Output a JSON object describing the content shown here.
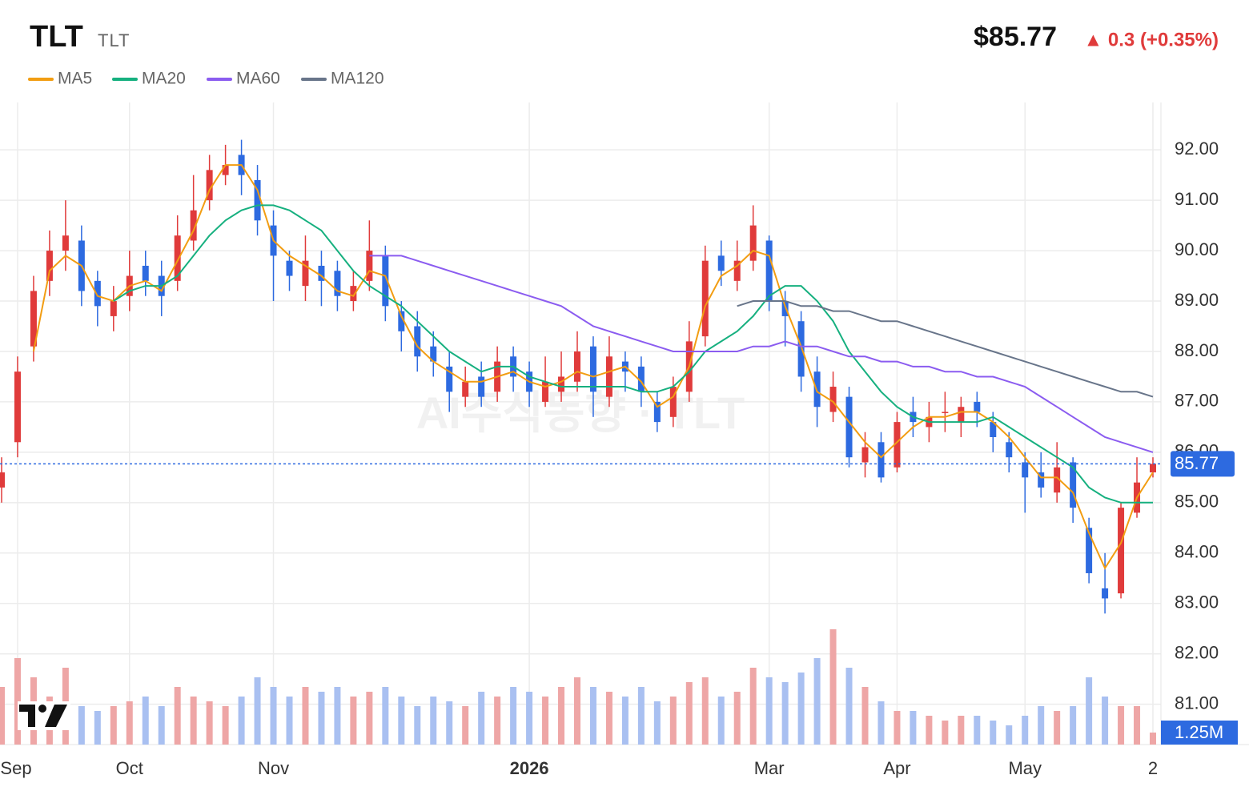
{
  "chart_data": {
    "type": "candlestick",
    "title": "TLT",
    "subtitle": "TLT",
    "price": "$85.77",
    "change": "▲ 0.3 (+0.35%)",
    "watermark": "AI주식동향 · TLT",
    "categories": [
      null,
      "Sep",
      null,
      null,
      null,
      null,
      null,
      null,
      "Oct",
      null,
      null,
      null,
      null,
      null,
      null,
      null,
      null,
      "Nov",
      null,
      null,
      null,
      null,
      null,
      null,
      null,
      null,
      null,
      null,
      null,
      null,
      null,
      null,
      null,
      "2026",
      null,
      null,
      null,
      null,
      null,
      null,
      null,
      null,
      null,
      null,
      null,
      null,
      null,
      null,
      "Mar",
      null,
      null,
      null,
      null,
      null,
      null,
      null,
      "Apr",
      null,
      null,
      null,
      null,
      null,
      null,
      null,
      "May",
      null,
      null,
      null,
      null,
      null,
      null,
      null,
      "2"
    ],
    "open": [
      85.3,
      86.2,
      88.1,
      89.4,
      90.0,
      90.2,
      89.4,
      88.7,
      89.1,
      89.7,
      89.5,
      89.4,
      90.2,
      91.0,
      91.5,
      91.9,
      91.4,
      90.5,
      89.8,
      89.3,
      89.7,
      89.6,
      89.0,
      89.4,
      89.9,
      88.8,
      88.5,
      88.1,
      87.7,
      87.1,
      87.5,
      87.2,
      87.9,
      87.6,
      87.0,
      87.2,
      87.4,
      88.1,
      87.1,
      87.8,
      87.7,
      87.0,
      86.7,
      87.2,
      88.3,
      89.9,
      89.4,
      89.8,
      90.2,
      89.0,
      88.6,
      87.6,
      86.8,
      87.1,
      85.8,
      86.2,
      85.7,
      86.8,
      86.5,
      86.8,
      86.6,
      87.0,
      86.6,
      86.2,
      85.8,
      85.6,
      85.2,
      85.8,
      84.5,
      83.3,
      83.2,
      84.8,
      85.6
    ],
    "high": [
      85.9,
      87.9,
      89.5,
      90.4,
      91.0,
      90.5,
      89.6,
      89.3,
      90.0,
      90.0,
      89.8,
      90.7,
      91.5,
      91.9,
      92.1,
      92.2,
      91.7,
      90.8,
      90.0,
      90.3,
      90.0,
      89.8,
      89.6,
      90.6,
      90.1,
      89.0,
      88.8,
      88.4,
      88.0,
      87.7,
      87.8,
      88.1,
      88.1,
      87.8,
      87.9,
      88.0,
      88.4,
      88.3,
      88.3,
      88.0,
      87.9,
      87.2,
      87.5,
      88.6,
      90.1,
      90.2,
      90.2,
      90.9,
      90.3,
      89.2,
      88.8,
      87.9,
      87.6,
      87.3,
      86.4,
      86.4,
      86.8,
      87.1,
      87.0,
      87.2,
      87.1,
      87.2,
      86.8,
      86.4,
      86.0,
      86.0,
      86.2,
      85.9,
      84.7,
      84.0,
      85.0,
      85.9,
      85.9
    ],
    "low": [
      85.0,
      85.9,
      87.8,
      89.1,
      89.6,
      88.9,
      88.5,
      88.4,
      88.8,
      89.1,
      88.7,
      89.2,
      90.0,
      90.8,
      91.3,
      91.1,
      90.3,
      89.0,
      89.2,
      89.0,
      88.9,
      88.8,
      88.8,
      89.2,
      88.6,
      88.0,
      87.6,
      87.5,
      86.8,
      86.9,
      86.9,
      87.0,
      87.2,
      86.9,
      86.9,
      87.0,
      87.2,
      86.7,
      86.9,
      87.2,
      86.9,
      86.4,
      86.5,
      87.0,
      88.1,
      89.3,
      89.2,
      89.6,
      88.8,
      88.1,
      87.2,
      86.5,
      86.6,
      85.7,
      85.5,
      85.4,
      85.6,
      86.3,
      86.2,
      86.4,
      86.3,
      86.5,
      86.0,
      85.6,
      84.8,
      85.1,
      85.0,
      84.6,
      83.4,
      82.8,
      83.1,
      84.7,
      85.5
    ],
    "close": [
      85.6,
      87.6,
      89.2,
      90.0,
      90.3,
      89.2,
      88.9,
      89.0,
      89.5,
      89.4,
      89.1,
      90.3,
      90.8,
      91.6,
      91.7,
      91.5,
      90.6,
      89.9,
      89.5,
      89.8,
      89.4,
      89.1,
      89.3,
      90.0,
      88.9,
      88.4,
      87.9,
      87.8,
      87.2,
      87.4,
      87.1,
      87.8,
      87.5,
      87.2,
      87.4,
      87.5,
      88.0,
      87.2,
      87.9,
      87.6,
      87.2,
      86.6,
      87.3,
      88.2,
      89.8,
      89.6,
      89.8,
      90.5,
      89.0,
      88.7,
      87.5,
      86.9,
      87.3,
      85.9,
      86.1,
      85.5,
      86.6,
      86.6,
      86.7,
      86.8,
      86.9,
      86.8,
      86.3,
      85.9,
      85.5,
      85.3,
      85.7,
      84.9,
      83.6,
      83.1,
      84.9,
      85.4,
      85.77
    ],
    "up_color": "#e03b3b",
    "down_color": "#2d6ae0",
    "up_volume_color": "#eea6a6",
    "down_volume_color": "#a9c0f1",
    "series": [
      {
        "name": "MA5",
        "color": "#f29d12",
        "values": [
          null,
          null,
          88.0,
          89.6,
          89.9,
          89.7,
          89.1,
          89.0,
          89.3,
          89.4,
          89.2,
          89.8,
          90.4,
          91.2,
          91.7,
          91.7,
          91.2,
          90.2,
          89.9,
          89.7,
          89.5,
          89.2,
          89.1,
          89.6,
          89.5,
          88.7,
          88.1,
          87.8,
          87.6,
          87.4,
          87.4,
          87.5,
          87.6,
          87.4,
          87.3,
          87.4,
          87.6,
          87.5,
          87.6,
          87.7,
          87.4,
          86.9,
          87.1,
          87.7,
          88.9,
          89.5,
          89.7,
          90.0,
          89.9,
          88.9,
          88.1,
          87.2,
          87.0,
          86.6,
          86.2,
          85.9,
          86.2,
          86.5,
          86.7,
          86.7,
          86.8,
          86.8,
          86.6,
          86.3,
          85.9,
          85.5,
          85.5,
          85.2,
          84.4,
          83.7,
          84.2,
          85.1,
          85.6
        ]
      },
      {
        "name": "MA20",
        "color": "#16b07f",
        "values": [
          null,
          null,
          null,
          null,
          null,
          null,
          null,
          89.0,
          89.2,
          89.3,
          89.3,
          89.5,
          89.9,
          90.3,
          90.6,
          90.8,
          90.9,
          90.9,
          90.8,
          90.6,
          90.4,
          90.0,
          89.6,
          89.3,
          89.1,
          88.9,
          88.6,
          88.3,
          88.0,
          87.8,
          87.6,
          87.7,
          87.7,
          87.5,
          87.4,
          87.3,
          87.3,
          87.3,
          87.3,
          87.3,
          87.2,
          87.2,
          87.3,
          87.6,
          88.0,
          88.2,
          88.4,
          88.7,
          89.1,
          89.3,
          89.3,
          89.0,
          88.6,
          88.0,
          87.6,
          87.2,
          86.9,
          86.7,
          86.6,
          86.6,
          86.6,
          86.6,
          86.7,
          86.5,
          86.3,
          86.1,
          85.9,
          85.7,
          85.3,
          85.1,
          85.0,
          85.0,
          85.0
        ]
      },
      {
        "name": "MA60",
        "color": "#8b5cf0",
        "values": [
          null,
          null,
          null,
          null,
          null,
          null,
          null,
          null,
          null,
          null,
          null,
          null,
          null,
          null,
          null,
          null,
          null,
          null,
          null,
          null,
          null,
          null,
          null,
          89.9,
          89.9,
          89.9,
          89.8,
          89.7,
          89.6,
          89.5,
          89.4,
          89.3,
          89.2,
          89.1,
          89.0,
          88.9,
          88.7,
          88.5,
          88.4,
          88.3,
          88.2,
          88.1,
          88.0,
          88.0,
          88.0,
          88.0,
          88.0,
          88.1,
          88.1,
          88.2,
          88.1,
          88.1,
          88.0,
          87.9,
          87.9,
          87.8,
          87.8,
          87.7,
          87.7,
          87.6,
          87.6,
          87.5,
          87.5,
          87.4,
          87.3,
          87.1,
          86.9,
          86.7,
          86.5,
          86.3,
          86.2,
          86.1,
          86.0
        ]
      },
      {
        "name": "MA120",
        "color": "#68758a",
        "values": [
          null,
          null,
          null,
          null,
          null,
          null,
          null,
          null,
          null,
          null,
          null,
          null,
          null,
          null,
          null,
          null,
          null,
          null,
          null,
          null,
          null,
          null,
          null,
          null,
          null,
          null,
          null,
          null,
          null,
          null,
          null,
          null,
          null,
          null,
          null,
          null,
          null,
          null,
          null,
          null,
          null,
          null,
          null,
          null,
          null,
          null,
          88.9,
          89.0,
          89.0,
          89.0,
          88.9,
          88.9,
          88.8,
          88.8,
          88.7,
          88.6,
          88.6,
          88.5,
          88.4,
          88.3,
          88.2,
          88.1,
          88.0,
          87.9,
          87.8,
          87.7,
          87.6,
          87.5,
          87.4,
          87.3,
          87.2,
          87.2,
          87.1
        ]
      }
    ],
    "volume": {
      "values": [
        6,
        9,
        7,
        5,
        8,
        4,
        3.5,
        4,
        4.5,
        5,
        4,
        6,
        5,
        4.5,
        4,
        5,
        7,
        6,
        5,
        6,
        5.5,
        6,
        5,
        5.5,
        6,
        5,
        4,
        5,
        4.5,
        4,
        5.5,
        5,
        6,
        5.5,
        5,
        6,
        7,
        6,
        5.5,
        5,
        6,
        4.5,
        5,
        6.5,
        7,
        5,
        5.5,
        8,
        7,
        6.5,
        7.5,
        9,
        12,
        8,
        6,
        4.5,
        3.5,
        3.5,
        3,
        2.5,
        3,
        3,
        2.5,
        2,
        3,
        4,
        3.5,
        4,
        7,
        5,
        4,
        4,
        1.25
      ],
      "ylim": [
        0,
        12.5
      ]
    },
    "current_price": 85.77,
    "current_volume": {
      "value": 1.25,
      "label": "1.25M"
    },
    "ylim": [
      80.2,
      92.94
    ],
    "yticks": [
      {
        "value": 81,
        "label": "81.00"
      },
      {
        "value": 82,
        "label": "82.00"
      },
      {
        "value": 83,
        "label": "83.00"
      },
      {
        "value": 84,
        "label": "84.00"
      },
      {
        "value": 85,
        "label": "85.00"
      },
      {
        "value": 86,
        "label": "86.00"
      },
      {
        "value": 87,
        "label": "87.00"
      },
      {
        "value": 88,
        "label": "88.00"
      },
      {
        "value": 89,
        "label": "89.00"
      },
      {
        "value": 90,
        "label": "90.00"
      },
      {
        "value": 91,
        "label": "91.00"
      },
      {
        "value": 92,
        "label": "92.00"
      }
    ],
    "grid": true
  }
}
